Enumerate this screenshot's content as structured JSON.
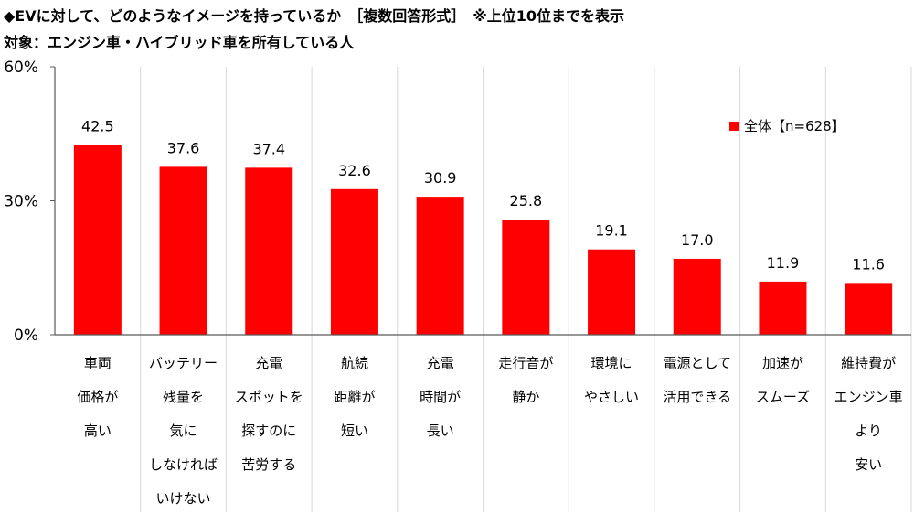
{
  "title": "◆EVに対して、どのようなイメージを持っているか　［複数回答形式］　※上位10位までを表示",
  "subtitle": "対象：エンジン車・ハイブリッド車を所有している人",
  "chart_data": {
    "type": "bar",
    "title": "◆EVに対して、どのようなイメージを持っているか　［複数回答形式］　※上位10位までを表示",
    "subtitle": "対象：エンジン車・ハイブリッド車を所有している人",
    "categories": [
      "車両\n価格が\n高い",
      "バッテリー\n残量を\n気に\nしなければ\nいけない",
      "充電\nスポットを\n探すのに\n苦労する",
      "航続\n距離が\n短い",
      "充電\n時間が\n長い",
      "走行音が\n静か",
      "環境に\nやさしい",
      "電源として\n活用できる",
      "加速が\nスムーズ",
      "維持費が\nエンジン車\nより\n安い"
    ],
    "series": [
      {
        "name": "全体【n=628】",
        "values": [
          42.5,
          37.6,
          37.4,
          32.6,
          30.9,
          25.8,
          19.1,
          17.0,
          11.9,
          11.6
        ],
        "color": "#ff0000"
      }
    ],
    "data_labels": [
      "42.5",
      "37.6",
      "37.4",
      "32.6",
      "30.9",
      "25.8",
      "19.1",
      "17.0",
      "11.9",
      "11.6"
    ],
    "yticks": [
      "0%",
      "30%",
      "60%"
    ],
    "ylim": [
      0,
      60
    ],
    "grid": "vertical category separators",
    "legend": "top-right",
    "xlabel": "",
    "ylabel": ""
  }
}
